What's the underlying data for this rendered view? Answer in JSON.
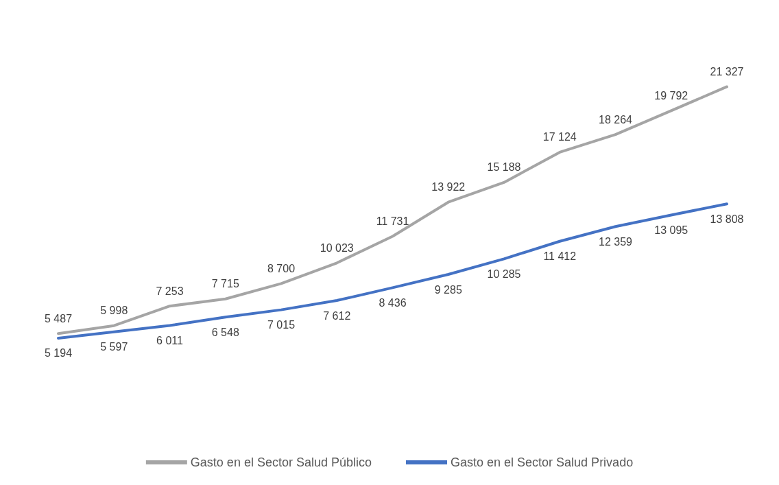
{
  "chart_data": {
    "type": "line",
    "categories": [
      null,
      null,
      null,
      null,
      null,
      null,
      null,
      null,
      null,
      null,
      null,
      null,
      null
    ],
    "series": [
      {
        "name": "Gasto en el Sector Salud Público",
        "color": "#a5a5a5",
        "values": [
          5487,
          5998,
          7253,
          7715,
          8700,
          10023,
          11731,
          13922,
          15188,
          17124,
          18264,
          19792,
          21327
        ],
        "value_labels": [
          "5 487",
          "5 998",
          "7 253",
          "7 715",
          "8 700",
          "10 023",
          "11 731",
          "13 922",
          "15 188",
          "17 124",
          "18 264",
          "19 792",
          "21 327"
        ]
      },
      {
        "name": "Gasto en el Sector Salud Privado",
        "color": "#4472c4",
        "values": [
          5194,
          5597,
          6011,
          6548,
          7015,
          7612,
          8436,
          9285,
          10285,
          11412,
          12359,
          13095,
          13808
        ],
        "value_labels": [
          "5 194",
          "5 597",
          "6 011",
          "6 548",
          "7 015",
          "7 612",
          "8 436",
          "9 285",
          "10 285",
          "11 412",
          "12 359",
          "13 095",
          "13 808"
        ]
      }
    ],
    "grid": false,
    "legend": "bottom",
    "marker": "none",
    "line_style": "solid"
  }
}
